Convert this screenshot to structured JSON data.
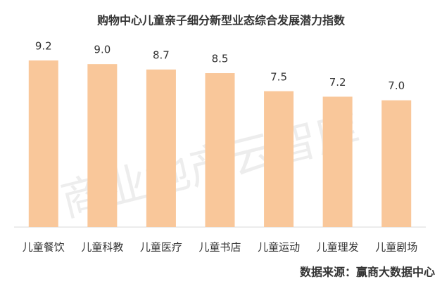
{
  "chart_data": {
    "type": "bar",
    "title": "购物中心儿童亲子细分新型业态综合发展潜力指数",
    "categories": [
      "儿童餐饮",
      "儿童科教",
      "儿童医疗",
      "儿童书店",
      "儿童运动",
      "儿童理发",
      "儿童剧场"
    ],
    "values": [
      9.2,
      9.0,
      8.7,
      8.5,
      7.5,
      7.2,
      7.0
    ],
    "value_labels": [
      "9.2",
      "9.0",
      "8.7",
      "8.5",
      "7.5",
      "7.2",
      "7.0"
    ],
    "color": "#f9c79a",
    "watermark": "商业地产云智库",
    "source": "数据来源：赢商大数据中心"
  }
}
